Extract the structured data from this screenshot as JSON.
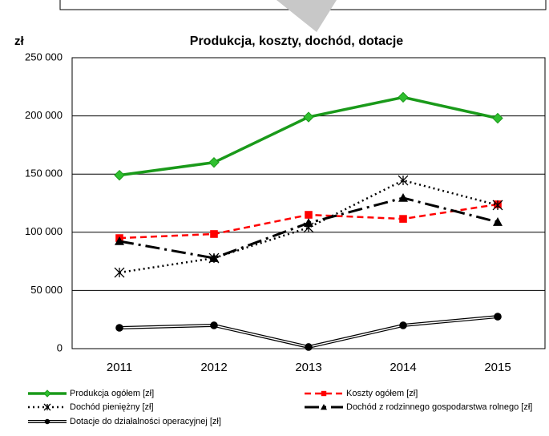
{
  "chart_data": {
    "type": "line",
    "title": "Produkcja, koszty, dochód, dotacje",
    "y_label": "zł",
    "categories": [
      "2011",
      "2012",
      "2013",
      "2014",
      "2015"
    ],
    "series": [
      {
        "name": "Produkcja ogółem [zł]",
        "color": "#1a9a1a",
        "values": [
          149000,
          160000,
          199000,
          216000,
          198000
        ]
      },
      {
        "name": "Koszty ogółem  [zł]",
        "color": "#ff0000",
        "values": [
          95000,
          98500,
          115000,
          111500,
          124000
        ]
      },
      {
        "name": "Dochód pieniężny [zł]",
        "color": "#000000",
        "values": [
          65400,
          77800,
          104000,
          144600,
          123300
        ]
      },
      {
        "name": "Dochód z rodzinnego gospodarstwa rolnego  [zł]",
        "color": "#000000",
        "values": [
          92300,
          77800,
          108000,
          129500,
          108800
        ]
      },
      {
        "name": "Dotacje do działalności operacyjnej  [zł]",
        "color": "#000000",
        "values": [
          17900,
          20000,
          1400,
          20000,
          27500
        ]
      }
    ],
    "ylim": [
      0,
      250000
    ],
    "yticks": [
      0,
      {
        "value": 50000,
        "label": "50 000"
      },
      {
        "value": 100000,
        "label": "100 000"
      },
      {
        "value": 150000,
        "label": "150 000"
      },
      {
        "value": 200000,
        "label": "200 000"
      },
      {
        "value": 250000,
        "label": "250 000"
      }
    ],
    "grid": true
  }
}
